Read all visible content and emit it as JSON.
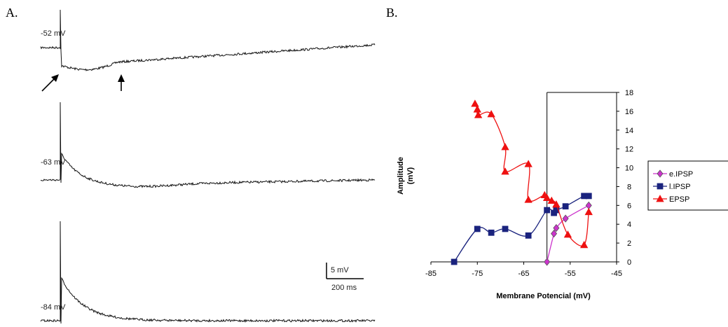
{
  "panels": {
    "a": "A.",
    "b": "B."
  },
  "traces": [
    {
      "label": "-52 mV"
    },
    {
      "label": "-63 mV"
    },
    {
      "label": "-84 mV"
    }
  ],
  "scalebar": {
    "vertical": "5 mV",
    "horizontal": "200 ms"
  },
  "chart_data": {
    "type": "line",
    "title": "",
    "xlabel": "Membrane Potencial (mV)",
    "ylabel_lines": [
      "Amplitude",
      "(mV)"
    ],
    "xlim": [
      -85,
      -45
    ],
    "ylim": [
      0,
      18
    ],
    "xticks": [
      "-85",
      "-75",
      "-65",
      "-55",
      "-45"
    ],
    "yticks": [
      "0",
      "2",
      "4",
      "6",
      "8",
      "10",
      "12",
      "14",
      "16",
      "18"
    ],
    "legend_position": "right",
    "series": [
      {
        "name": "e.IPSP",
        "color": "#cc33cc",
        "marker": "diamond",
        "x": [
          -60,
          -58.5,
          -58,
          -56,
          -51
        ],
        "y": [
          0,
          3,
          3.6,
          4.6,
          6
        ]
      },
      {
        "name": "l.IPSP",
        "color": "#1a237e",
        "marker": "square",
        "x": [
          -80,
          -75,
          -72,
          -69,
          -64,
          -60,
          -58.5,
          -58,
          -56,
          -52,
          -51
        ],
        "y": [
          0,
          3.5,
          3.1,
          3.5,
          2.8,
          5.5,
          5.2,
          5.5,
          5.9,
          7,
          7
        ]
      },
      {
        "name": "EPSP",
        "color": "#ee1111",
        "marker": "triangle",
        "x": [
          -75.5,
          -75,
          -74.8,
          -72,
          -69,
          -69,
          -64,
          -64,
          -60.5,
          -60,
          -59,
          -58,
          -55.5,
          -52,
          -51
        ],
        "y": [
          16.8,
          16.2,
          15.6,
          15.7,
          12.2,
          9.6,
          10.4,
          6.6,
          7.1,
          6.8,
          6.5,
          6.1,
          2.9,
          1.8,
          5.3
        ]
      }
    ]
  }
}
